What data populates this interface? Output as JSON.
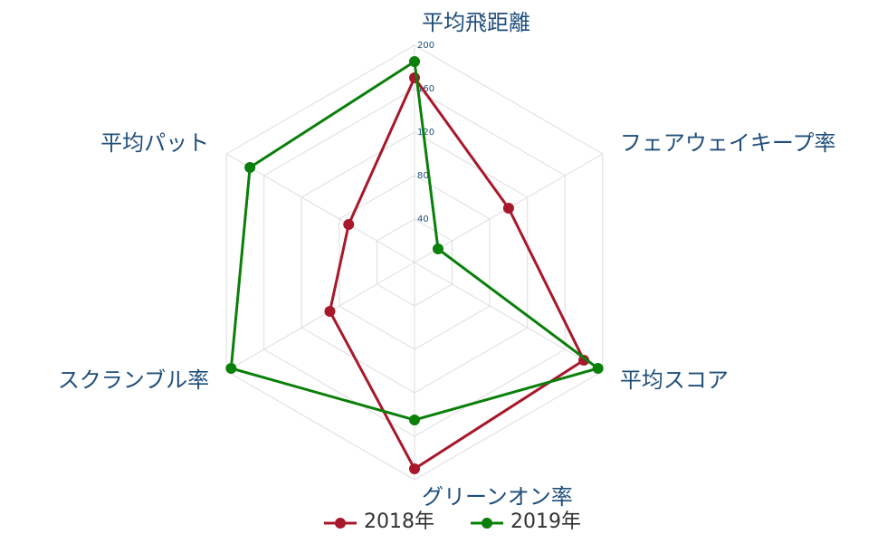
{
  "chart_data": {
    "type": "radar",
    "categories": [
      "平均飛距離",
      "フェアウェイキープ率",
      "平均スコア",
      "グリーンオン率",
      "スクランブル率",
      "平均パット"
    ],
    "rlim": [
      0,
      200
    ],
    "rticks": [
      40,
      80,
      120,
      160,
      200
    ],
    "series": [
      {
        "name": "2018年",
        "color": "#a8182b",
        "values": [
          170,
          100,
          180,
          190,
          90,
          70
        ]
      },
      {
        "name": "2019年",
        "color": "#0a7f0a",
        "values": [
          185,
          25,
          195,
          145,
          195,
          175
        ]
      }
    ]
  }
}
